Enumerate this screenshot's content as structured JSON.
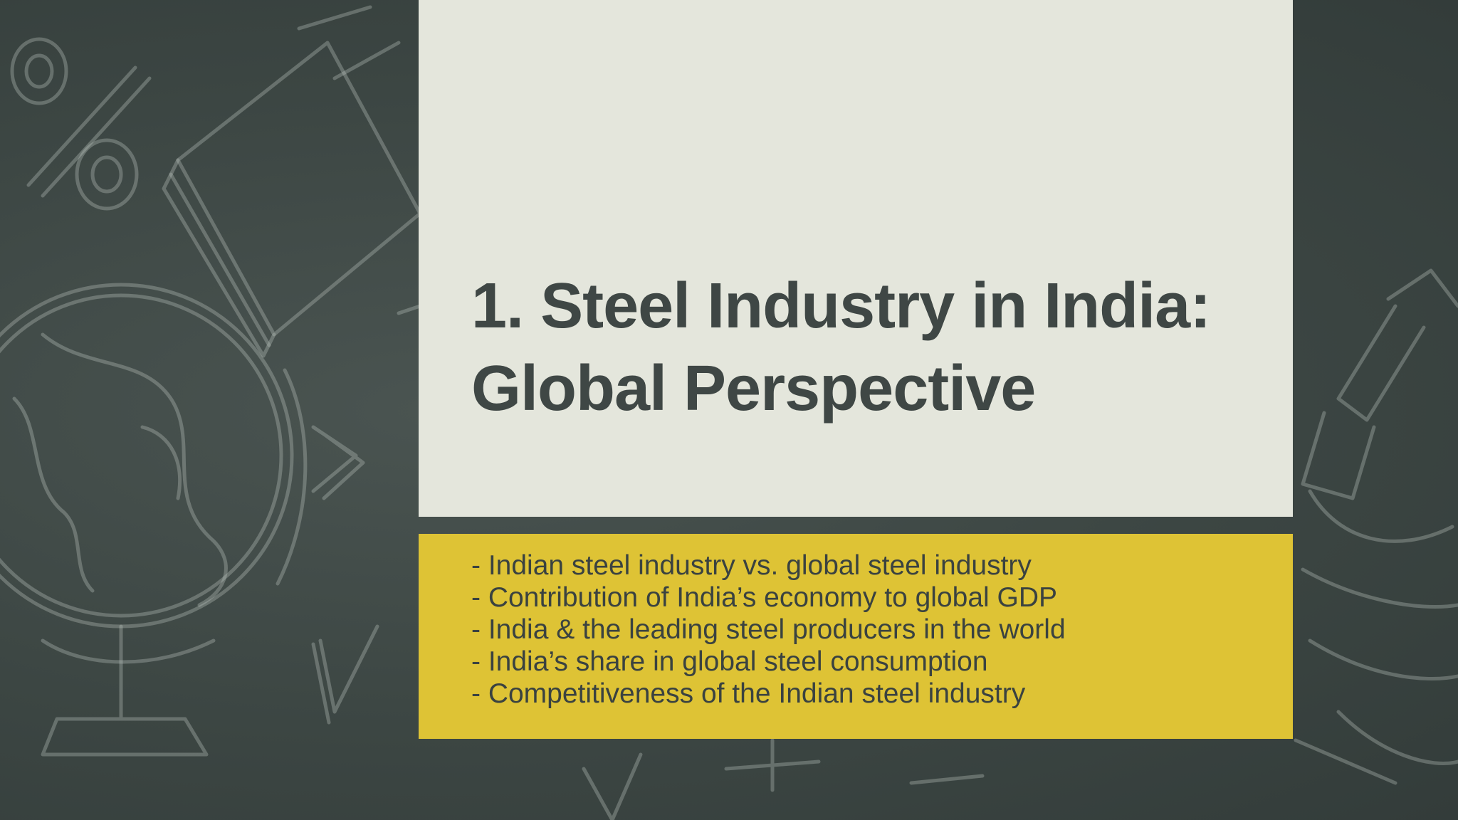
{
  "slide": {
    "title": "1. Steel Industry in India: Global Perspective",
    "bullets": [
      "- Indian steel industry vs. global steel industry",
      "- Contribution of India’s economy to global GDP",
      "- India & the leading steel producers in the world",
      "- India’s share in global steel consumption",
      "- Competitiveness of the Indian steel industry"
    ]
  },
  "colors": {
    "background": "#3c4643",
    "title_panel": "#e4e6dc",
    "subtitle_panel": "#dec335",
    "title_text": "#3f4745",
    "bullet_text": "#3a4240"
  },
  "background_icons": [
    "percent-doodle",
    "book-doodle",
    "globe-doodle",
    "microscope-doodle",
    "math-symbols-doodle"
  ]
}
